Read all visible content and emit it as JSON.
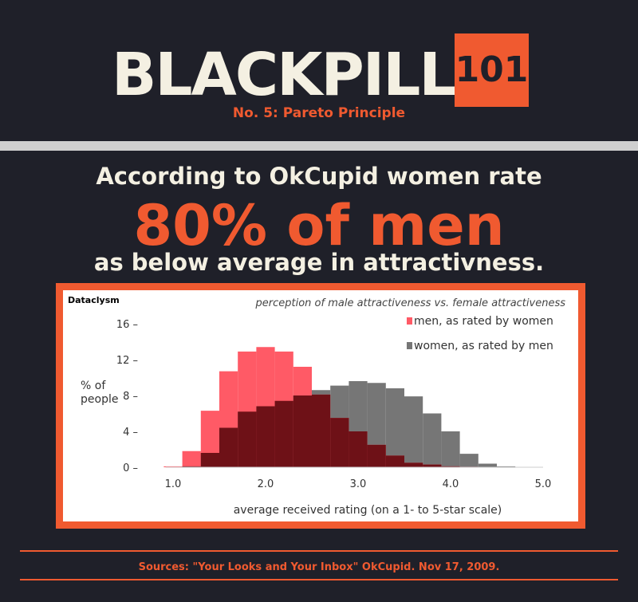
{
  "header": {
    "title": "BLACKPILL",
    "title_number": "101",
    "subtitle": "No. 5: Pareto Principle"
  },
  "headline": {
    "line1": "According to OkCupid women rate",
    "line2": "80% of men",
    "line3": "as below average in attractivness."
  },
  "footer": {
    "sources": "Sources: \"Your Looks and Your Inbox\" OkCupid. Nov 17, 2009."
  },
  "colors": {
    "background": "#1f2029",
    "accent": "#f05a30",
    "men": "#ff5a66",
    "women": "#767676",
    "overlap": "#6e1117"
  },
  "chart_data": {
    "type": "bar",
    "source_label": "Dataclysm",
    "title": "perception of male attractiveness vs. female attractiveness",
    "xlabel": "average received rating (on a 1- to 5-star scale)",
    "ylabel": "% of people",
    "xlim": [
      1.0,
      5.0
    ],
    "ylim": [
      0,
      16
    ],
    "x_ticks": [
      "1.0",
      "2.0",
      "3.0",
      "4.0",
      "5.0"
    ],
    "y_ticks": [
      "0",
      "4",
      "8",
      "12",
      "16"
    ],
    "bin_width": 0.2,
    "bin_starts": [
      0.9,
      1.1,
      1.3,
      1.5,
      1.7,
      1.9,
      2.1,
      2.3,
      2.5,
      2.7,
      2.9,
      3.1,
      3.3,
      3.5,
      3.7,
      3.9,
      4.1,
      4.3,
      4.5
    ],
    "series": [
      {
        "name": "men, as rated by women",
        "values": [
          0.1,
          1.8,
          6.3,
          10.7,
          12.9,
          13.4,
          12.9,
          11.2,
          8.1,
          5.5,
          4.0,
          2.5,
          1.3,
          0.5,
          0.3,
          0.1,
          0.05,
          0,
          0
        ]
      },
      {
        "name": "women, as rated by men",
        "values": [
          0,
          0.1,
          1.6,
          4.4,
          6.2,
          6.8,
          7.4,
          8.0,
          8.6,
          9.1,
          9.6,
          9.4,
          8.8,
          7.9,
          6.0,
          4.0,
          1.5,
          0.4,
          0.1
        ]
      }
    ]
  }
}
